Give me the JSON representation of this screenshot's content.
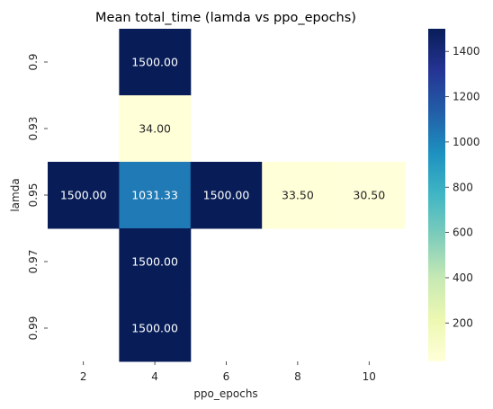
{
  "chart_data": {
    "type": "heatmap",
    "title": "Mean total_time (lamda vs ppo_epochs)",
    "xlabel": "ppo_epochs",
    "ylabel": "lamda",
    "x_categories": [
      "2",
      "4",
      "6",
      "8",
      "10"
    ],
    "y_categories": [
      "0.9",
      "0.93",
      "0.95",
      "0.97",
      "0.99"
    ],
    "cells": [
      {
        "x": "4",
        "y": "0.9",
        "value": 1500.0,
        "label": "1500.00"
      },
      {
        "x": "4",
        "y": "0.93",
        "value": 34.0,
        "label": "34.00"
      },
      {
        "x": "2",
        "y": "0.95",
        "value": 1500.0,
        "label": "1500.00"
      },
      {
        "x": "4",
        "y": "0.95",
        "value": 1031.33,
        "label": "1031.33"
      },
      {
        "x": "6",
        "y": "0.95",
        "value": 1500.0,
        "label": "1500.00"
      },
      {
        "x": "8",
        "y": "0.95",
        "value": 33.5,
        "label": "33.50"
      },
      {
        "x": "10",
        "y": "0.95",
        "value": 30.5,
        "label": "30.50"
      },
      {
        "x": "4",
        "y": "0.97",
        "value": 1500.0,
        "label": "1500.00"
      },
      {
        "x": "4",
        "y": "0.99",
        "value": 1500.0,
        "label": "1500.00"
      }
    ],
    "colormap": "YlGnBu",
    "colorbar": {
      "range": [
        30.5,
        1500
      ],
      "ticks": [
        "200",
        "400",
        "600",
        "800",
        "1000",
        "1200",
        "1400"
      ]
    }
  }
}
